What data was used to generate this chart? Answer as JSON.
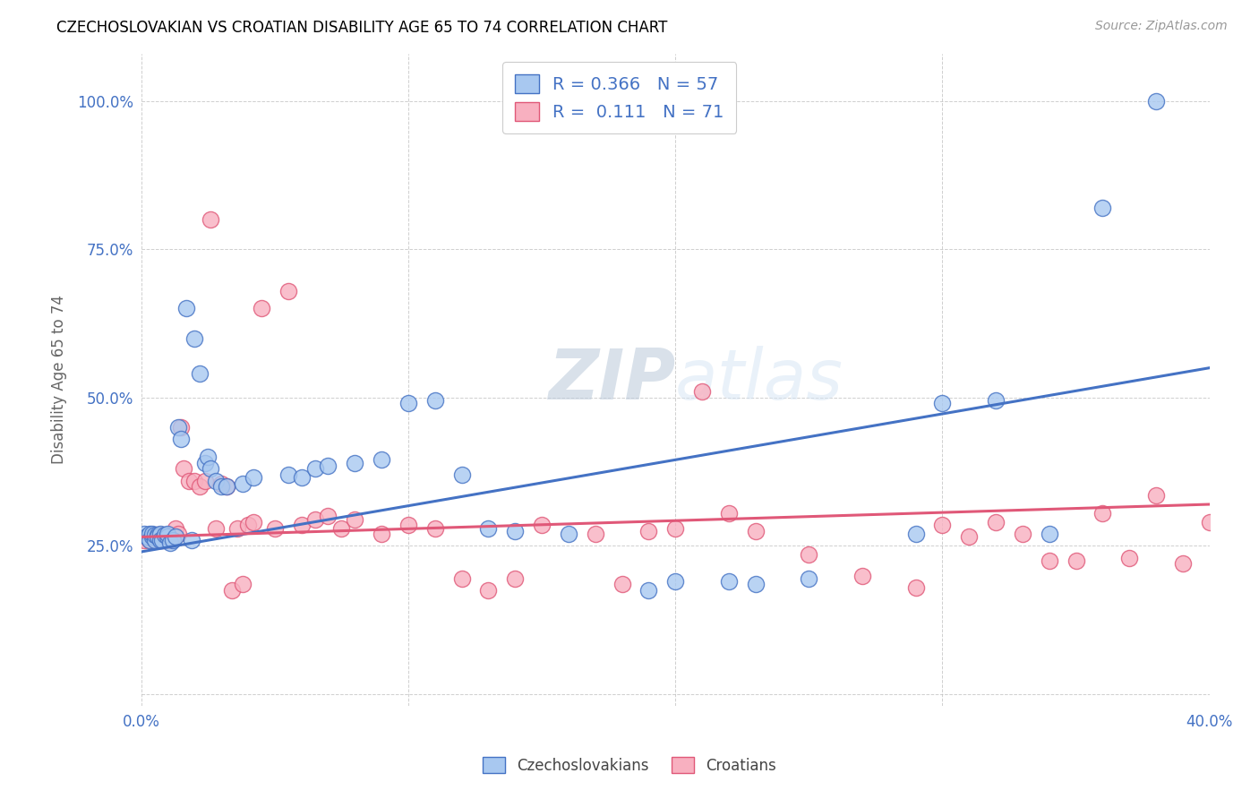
{
  "title": "CZECHOSLOVAKIAN VS CROATIAN DISABILITY AGE 65 TO 74 CORRELATION CHART",
  "source": "Source: ZipAtlas.com",
  "ylabel": "Disability Age 65 to 74",
  "xlim": [
    0.0,
    0.4
  ],
  "ylim": [
    -0.02,
    1.08
  ],
  "xticks": [
    0.0,
    0.1,
    0.2,
    0.3,
    0.4
  ],
  "xticklabels": [
    "0.0%",
    "",
    "",
    "",
    "40.0%"
  ],
  "yticks": [
    0.0,
    0.25,
    0.5,
    0.75,
    1.0
  ],
  "yticklabels": [
    "",
    "25.0%",
    "50.0%",
    "75.0%",
    "100.0%"
  ],
  "blue_R": "0.366",
  "blue_N": "57",
  "pink_R": "0.111",
  "pink_N": "71",
  "blue_color": "#A8C8F0",
  "pink_color": "#F8B0C0",
  "blue_line_color": "#4472C4",
  "pink_line_color": "#E05878",
  "watermark_color": "#D8E4F0",
  "blue_scatter_x": [
    0.001,
    0.002,
    0.002,
    0.003,
    0.003,
    0.004,
    0.004,
    0.005,
    0.005,
    0.006,
    0.006,
    0.007,
    0.007,
    0.008,
    0.009,
    0.01,
    0.01,
    0.011,
    0.012,
    0.013,
    0.014,
    0.015,
    0.017,
    0.019,
    0.02,
    0.022,
    0.024,
    0.025,
    0.026,
    0.028,
    0.03,
    0.032,
    0.038,
    0.042,
    0.055,
    0.06,
    0.065,
    0.07,
    0.08,
    0.09,
    0.1,
    0.11,
    0.12,
    0.13,
    0.14,
    0.16,
    0.19,
    0.2,
    0.22,
    0.23,
    0.25,
    0.29,
    0.3,
    0.32,
    0.34,
    0.36,
    0.38
  ],
  "blue_scatter_y": [
    0.27,
    0.265,
    0.265,
    0.27,
    0.26,
    0.265,
    0.27,
    0.26,
    0.268,
    0.268,
    0.265,
    0.27,
    0.26,
    0.26,
    0.268,
    0.265,
    0.27,
    0.255,
    0.26,
    0.265,
    0.45,
    0.43,
    0.65,
    0.26,
    0.6,
    0.54,
    0.39,
    0.4,
    0.38,
    0.36,
    0.35,
    0.35,
    0.355,
    0.365,
    0.37,
    0.365,
    0.38,
    0.385,
    0.39,
    0.395,
    0.49,
    0.495,
    0.37,
    0.28,
    0.275,
    0.27,
    0.175,
    0.19,
    0.19,
    0.185,
    0.195,
    0.27,
    0.49,
    0.495,
    0.27,
    0.82,
    1.0
  ],
  "pink_scatter_x": [
    0.001,
    0.002,
    0.002,
    0.003,
    0.003,
    0.004,
    0.004,
    0.005,
    0.005,
    0.006,
    0.006,
    0.007,
    0.007,
    0.008,
    0.009,
    0.01,
    0.011,
    0.012,
    0.013,
    0.014,
    0.015,
    0.016,
    0.018,
    0.02,
    0.022,
    0.024,
    0.026,
    0.028,
    0.03,
    0.032,
    0.034,
    0.036,
    0.038,
    0.04,
    0.042,
    0.045,
    0.05,
    0.055,
    0.06,
    0.065,
    0.07,
    0.075,
    0.08,
    0.09,
    0.1,
    0.11,
    0.12,
    0.13,
    0.14,
    0.15,
    0.17,
    0.18,
    0.19,
    0.2,
    0.21,
    0.22,
    0.23,
    0.25,
    0.27,
    0.29,
    0.3,
    0.31,
    0.32,
    0.33,
    0.34,
    0.35,
    0.36,
    0.37,
    0.38,
    0.39,
    0.4
  ],
  "pink_scatter_y": [
    0.26,
    0.265,
    0.265,
    0.26,
    0.268,
    0.265,
    0.268,
    0.26,
    0.262,
    0.26,
    0.268,
    0.265,
    0.26,
    0.268,
    0.26,
    0.265,
    0.26,
    0.265,
    0.28,
    0.27,
    0.45,
    0.38,
    0.36,
    0.36,
    0.35,
    0.36,
    0.8,
    0.28,
    0.355,
    0.35,
    0.175,
    0.28,
    0.185,
    0.285,
    0.29,
    0.65,
    0.28,
    0.68,
    0.285,
    0.295,
    0.3,
    0.28,
    0.295,
    0.27,
    0.285,
    0.28,
    0.195,
    0.175,
    0.195,
    0.285,
    0.27,
    0.185,
    0.275,
    0.28,
    0.51,
    0.305,
    0.275,
    0.235,
    0.2,
    0.18,
    0.285,
    0.265,
    0.29,
    0.27,
    0.225,
    0.225,
    0.305,
    0.23,
    0.335,
    0.22,
    0.29
  ]
}
